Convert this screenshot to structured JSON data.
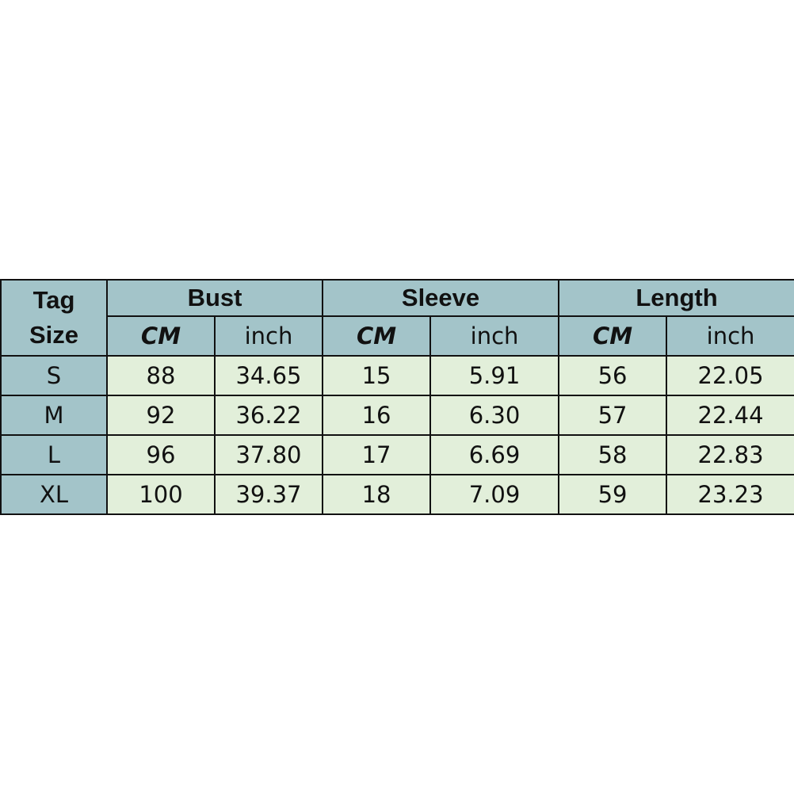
{
  "header": {
    "tag_size": [
      "Tag",
      "Size"
    ],
    "groups": [
      "Bust",
      "Sleeve",
      "Length"
    ],
    "units": [
      "CM",
      "inch",
      "CM",
      "inch",
      "CM",
      "inch"
    ]
  },
  "rows": [
    {
      "size": "S",
      "values": [
        "88",
        "34.65",
        "15",
        "5.91",
        "56",
        "22.05"
      ]
    },
    {
      "size": "M",
      "values": [
        "92",
        "36.22",
        "16",
        "6.30",
        "57",
        "22.44"
      ]
    },
    {
      "size": "L",
      "values": [
        "96",
        "37.80",
        "17",
        "6.69",
        "58",
        "22.83"
      ]
    },
    {
      "size": "XL",
      "values": [
        "100",
        "39.37",
        "18",
        "7.09",
        "59",
        "23.23"
      ]
    }
  ],
  "colors": {
    "header_bg": "#a3c4c9",
    "cell_bg": "#e2efda"
  }
}
